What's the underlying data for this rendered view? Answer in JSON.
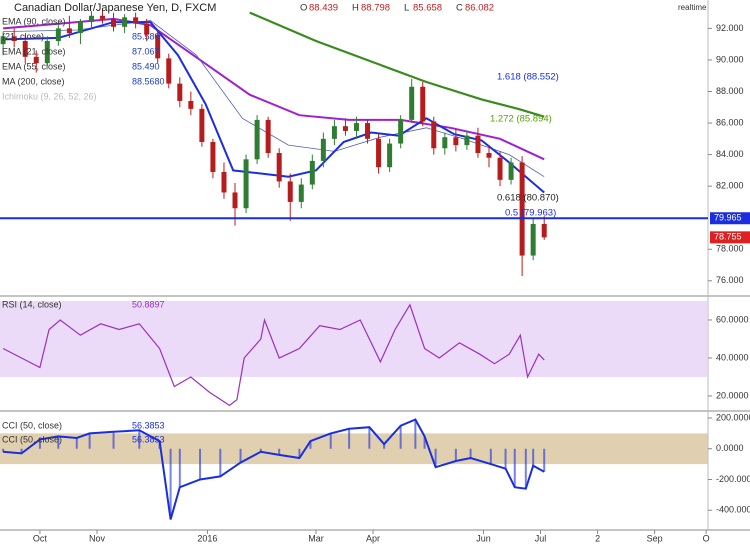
{
  "chart_data": [
    {
      "type": "candlestick",
      "title": "Canadian Dollar/Japanese Yen, D, FXCM",
      "ohlc": [
        {
          "label": "O",
          "value": 88.439
        },
        {
          "label": "H",
          "value": 88.798
        },
        {
          "label": "L",
          "value": 85.658
        },
        {
          "label": "C",
          "value": 86.082
        }
      ],
      "indicators": [
        {
          "name": "EMA (90, close)",
          "reading": ""
        },
        {
          "name": "(21, close)",
          "reading": "85.580"
        },
        {
          "name": "EMA (21, close)",
          "reading": "87.067"
        },
        {
          "name": "EMA (55, close)",
          "reading": "85.490"
        },
        {
          "name": "MA (200, close)",
          "reading": "88.5680"
        },
        {
          "name": "Ichimoku (9, 26, 52, 26)",
          "reading": ""
        }
      ],
      "realtime": "realtime",
      "up_color": "#2f7d32",
      "down_color": "#b71c1c",
      "x": [
        -20,
        -14,
        -8,
        -2,
        4,
        10,
        16,
        22,
        28,
        34,
        40,
        46,
        52,
        58,
        64,
        70,
        76,
        82,
        88,
        94,
        100,
        106,
        112,
        118,
        124,
        130,
        136,
        142,
        148,
        154,
        160,
        166,
        172,
        178,
        184,
        190,
        196,
        202,
        208,
        214,
        220,
        226,
        232,
        238,
        244,
        250,
        256,
        262,
        268,
        274
      ],
      "open": [
        91.0,
        91.5,
        91.2,
        90.2,
        89.8,
        91.2,
        92.0,
        91.7,
        92.4,
        92.8,
        92.6,
        92.1,
        92.7,
        92.3,
        91.6,
        90.1,
        88.5,
        87.4,
        86.9,
        84.8,
        82.9,
        81.6,
        80.6,
        83.7,
        86.2,
        84.1,
        82.3,
        81.0,
        82.1,
        83.6,
        85.0,
        85.8,
        85.5,
        86.0,
        85.0,
        83.2,
        84.7,
        86.2,
        88.3,
        86.1,
        84.4,
        85.1,
        84.6,
        85.2,
        84.1,
        83.8,
        82.4,
        83.5,
        77.6,
        79.6
      ],
      "high": [
        91.8,
        92.0,
        91.6,
        90.6,
        91.5,
        92.3,
        92.8,
        92.6,
        93.1,
        93.2,
        93.0,
        92.9,
        93.0,
        92.6,
        91.9,
        90.4,
        88.9,
        88.0,
        87.2,
        85.0,
        83.5,
        82.2,
        84.0,
        86.5,
        86.4,
        84.4,
        82.8,
        82.5,
        84.0,
        85.4,
        86.2,
        86.3,
        86.4,
        86.2,
        85.3,
        85.0,
        86.5,
        88.8,
        88.6,
        86.4,
        85.4,
        85.6,
        85.5,
        85.7,
        84.6,
        84.2,
        83.8,
        83.9,
        80.0,
        80.1
      ],
      "low": [
        90.3,
        90.8,
        89.8,
        89.2,
        89.6,
        90.9,
        91.4,
        91.0,
        92.0,
        92.3,
        91.8,
        91.7,
        92.0,
        91.2,
        89.8,
        88.2,
        87.0,
        86.5,
        84.5,
        82.5,
        81.2,
        79.5,
        80.3,
        83.4,
        83.8,
        81.9,
        79.8,
        80.6,
        81.8,
        83.2,
        84.6,
        85.2,
        85.0,
        84.7,
        82.8,
        82.9,
        84.4,
        86.0,
        85.8,
        84.0,
        84.0,
        84.2,
        84.3,
        83.8,
        83.2,
        82.0,
        82.1,
        76.3,
        77.3,
        78.6
      ],
      "close": [
        91.5,
        91.2,
        90.2,
        89.8,
        91.2,
        92.0,
        91.7,
        92.4,
        92.8,
        92.6,
        92.1,
        92.7,
        92.3,
        91.6,
        90.1,
        88.5,
        87.4,
        86.9,
        84.8,
        82.9,
        81.6,
        80.6,
        83.7,
        86.2,
        84.1,
        82.3,
        81.0,
        82.1,
        83.6,
        85.0,
        85.8,
        85.5,
        86.0,
        85.0,
        83.2,
        84.7,
        86.2,
        88.3,
        86.1,
        84.4,
        85.1,
        84.6,
        85.2,
        84.1,
        83.8,
        82.4,
        83.5,
        77.6,
        79.6,
        78.755
      ],
      "series": [
        {
          "name": "MA (200, close)",
          "color": "#3a8a1e",
          "width": 2.2,
          "x": [
            114,
            150,
            180,
            210,
            240,
            260,
            274
          ],
          "values": [
            93.0,
            91.2,
            89.9,
            88.6,
            87.5,
            86.9,
            86.4
          ]
        },
        {
          "name": "EMA (90, close)",
          "color": "#a020d0",
          "width": 2,
          "x": [
            -20,
            10,
            40,
            60,
            87,
            114,
            141,
            168,
            196,
            223,
            250,
            274
          ],
          "values": [
            92.0,
            92.3,
            92.6,
            92.2,
            90.0,
            87.8,
            86.5,
            86.2,
            86.2,
            85.7,
            85.0,
            83.7
          ]
        },
        {
          "name": "EMA (55, close)",
          "color": "#5060b0",
          "width": 0.8,
          "x": [
            -20,
            20,
            60,
            85,
            110,
            135,
            160,
            185,
            210,
            230,
            255,
            274
          ],
          "values": [
            91.8,
            91.9,
            92.5,
            90.3,
            86.3,
            84.6,
            84.2,
            85.1,
            85.7,
            85.0,
            84.0,
            82.6
          ]
        },
        {
          "name": "EMA (21, close)",
          "color": "#1a2ee0",
          "width": 2,
          "x": [
            -20,
            10,
            40,
            60,
            75,
            90,
            105,
            120,
            135,
            150,
            165,
            180,
            195,
            210,
            225,
            240,
            255,
            274
          ],
          "values": [
            91.3,
            91.4,
            92.4,
            92.4,
            90.3,
            87.2,
            83.0,
            82.8,
            82.6,
            83.0,
            84.8,
            85.4,
            85.2,
            86.3,
            85.3,
            84.9,
            83.5,
            81.6
          ]
        }
      ],
      "hline": 79.965,
      "hline_color": "#1a2ee0",
      "last_price": 78.755,
      "last_color": "#e02020",
      "annotations": [
        {
          "text": "1.618 (88.552)",
          "color": "#1a2ee0"
        },
        {
          "text": "1.272 (85.894)",
          "color": "#58a000"
        },
        {
          "text": "0.618 (80.870)",
          "color": "#222222"
        },
        {
          "text": "0.5 (79.963)",
          "color": "#1a2ee0"
        }
      ],
      "xlim": [
        -21.7,
        363
      ],
      "ylim": [
        75.1,
        93.8
      ],
      "yticks": [
        {
          "value": 92,
          "label": "92.000"
        },
        {
          "value": 90,
          "label": "90.000"
        },
        {
          "value": 88,
          "label": "88.000"
        },
        {
          "value": 86,
          "label": "86.000"
        },
        {
          "value": 84,
          "label": "84.000"
        },
        {
          "value": 82,
          "label": "82.000"
        },
        {
          "value": 78,
          "label": "78.000"
        },
        {
          "value": 76,
          "label": "76.000"
        }
      ]
    },
    {
      "type": "line",
      "title": "RSI (14, close)",
      "reading": "50.8897",
      "color": "#9a30c0",
      "band": [
        30,
        70
      ],
      "band_color": "#e6d2f8",
      "x": [
        -20,
        -10,
        0,
        5,
        11,
        22,
        33,
        43,
        54,
        65,
        73,
        82,
        92,
        103,
        107,
        111,
        120,
        122,
        130,
        141,
        152,
        163,
        174,
        185,
        193,
        201,
        209,
        217,
        228,
        239,
        247,
        255,
        261,
        265,
        271,
        274
      ],
      "values": [
        45,
        40,
        35,
        55,
        60,
        52,
        58,
        55,
        58,
        45,
        25,
        30,
        22,
        15,
        18,
        40,
        50,
        60,
        40,
        45,
        57,
        55,
        60,
        38,
        55,
        68,
        45,
        40,
        48,
        42,
        37,
        42,
        52,
        30,
        42,
        39
      ],
      "xlim": [
        -21.7,
        363
      ],
      "ylim": [
        12.6,
        72.1
      ],
      "yticks": [
        {
          "value": 60,
          "label": "60.0000"
        },
        {
          "value": 40,
          "label": "40.0000"
        },
        {
          "value": 20,
          "label": "20.0000"
        }
      ]
    },
    {
      "type": "cci",
      "labels": [
        {
          "name": "CCI (50, close)",
          "reading": "56.3853"
        },
        {
          "name": "CCI (50, close)",
          "reading": "56.3853"
        }
      ],
      "color": "#1a2ee0",
      "band": [
        -100,
        100
      ],
      "band_color": "#d9c49c",
      "x": [
        -20,
        -10,
        0,
        10,
        20,
        27,
        40,
        54,
        65,
        71,
        76,
        87,
        98,
        109,
        120,
        130,
        141,
        147,
        158,
        168,
        179,
        187,
        196,
        204,
        209,
        215,
        226,
        234,
        245,
        253,
        258,
        264,
        268,
        274
      ],
      "values": [
        -20,
        -30,
        60,
        80,
        70,
        100,
        110,
        120,
        50,
        -460,
        -250,
        -200,
        -180,
        -90,
        -20,
        -40,
        -60,
        50,
        100,
        130,
        140,
        30,
        150,
        190,
        80,
        -120,
        -80,
        -60,
        -100,
        -130,
        -250,
        -260,
        -110,
        -150
      ],
      "xlim": [
        -21.7,
        363
      ],
      "ylim": [
        -522,
        239
      ],
      "yticks": [
        {
          "value": 200,
          "label": "200.0000"
        },
        {
          "value": 0,
          "label": "0.0000"
        },
        {
          "value": -200,
          "label": "-200.0000"
        },
        {
          "value": -400,
          "label": "-400.0000"
        }
      ],
      "xticks": [
        {
          "value": 0,
          "label": "Oct"
        },
        {
          "value": 31,
          "label": "Nov"
        },
        {
          "value": 91,
          "label": "2016"
        },
        {
          "value": 150,
          "label": "Mar"
        },
        {
          "value": 181,
          "label": "Apr"
        },
        {
          "value": 241,
          "label": "Jun"
        },
        {
          "value": 272,
          "label": "Jul"
        },
        {
          "value": 303,
          "label": "2"
        },
        {
          "value": 334,
          "label": "Sep"
        },
        {
          "value": 362,
          "label": "O"
        }
      ]
    }
  ]
}
